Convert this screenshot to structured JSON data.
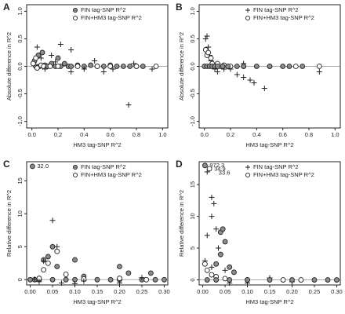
{
  "chart_data": [
    {
      "type": "scatter",
      "label": "A",
      "xlabel": "HM3 tag-SNP R^2",
      "ylabel": "Absolute difference in R^2",
      "legend": "upper right",
      "hline": 0,
      "xlim": [
        -0.04,
        1.04
      ],
      "ylim": [
        -1.12,
        1.12
      ],
      "xticks": [
        {
          "value": 0,
          "label": "0.0"
        },
        {
          "value": 0.2,
          "label": "0.2"
        },
        {
          "value": 0.4,
          "label": "0.4"
        },
        {
          "value": 0.6,
          "label": "0.6"
        },
        {
          "value": 0.8,
          "label": "0.8"
        },
        {
          "value": 1,
          "label": "1.0"
        }
      ],
      "yticks": [
        {
          "value": -1,
          "label": "-1.0"
        },
        {
          "value": -0.5,
          "label": "-0.5"
        },
        {
          "value": 0,
          "label": "0.0"
        },
        {
          "value": 0.5,
          "label": "0.5"
        },
        {
          "value": 1,
          "label": "1.0"
        }
      ],
      "series": [
        {
          "name": "FIN tag-SNP R^2",
          "marker": "filled",
          "color": "#8c8c8c",
          "x": [
            0.02,
            0.05,
            0.08,
            0.1,
            0.15,
            0.2,
            0.22,
            0.28,
            0.3,
            0.35,
            0.4,
            0.45,
            0.5,
            0.55,
            0.6,
            0.65,
            0.7,
            0.75,
            0.8,
            0.85,
            0.12,
            0.18,
            0.03,
            0.06,
            0.25
          ],
          "values": [
            0.1,
            0.2,
            0.25,
            0.02,
            0.05,
            0.15,
            0,
            0,
            0,
            0.02,
            0,
            0.02,
            0,
            0,
            0.02,
            0,
            0,
            0,
            0,
            0,
            0,
            0,
            0,
            0,
            0.05
          ]
        },
        {
          "name": "FIN+HM3 tag-SNP R^2",
          "marker": "open",
          "color": "#ffffff",
          "x": [
            0.01,
            0.03,
            0.04,
            0.07,
            0.09,
            0.14,
            0.2,
            0.35,
            0.5,
            0.6,
            0.8,
            0.95
          ],
          "values": [
            0.05,
            0.15,
            -0.03,
            0.02,
            0,
            0,
            0,
            0,
            0,
            0,
            0,
            0
          ]
        },
        {
          "marker": "plus",
          "color": "#222222",
          "x": [
            0.04,
            0.07,
            0.1,
            0.18,
            0.22,
            0.3,
            0.3,
            0.4,
            0.48,
            0.55,
            0.62,
            0.74,
            0.78,
            0.92,
            0.15
          ],
          "values": [
            0.35,
            0.15,
            -0.05,
            0.08,
            0.4,
            0.3,
            -0.1,
            -0.05,
            0.1,
            -0.1,
            -0.05,
            -0.7,
            0.05,
            -0.05,
            0.2
          ]
        }
      ]
    },
    {
      "type": "scatter",
      "label": "B",
      "xlabel": "HM3 tag-SNP R^2",
      "ylabel": "Absolute difference in R^2",
      "legend": "upper right",
      "hline": 0,
      "xlim": [
        -0.04,
        1.04
      ],
      "ylim": [
        -1.12,
        1.12
      ],
      "xticks": [
        {
          "value": 0,
          "label": "0.0"
        },
        {
          "value": 0.2,
          "label": "0.2"
        },
        {
          "value": 0.4,
          "label": "0.4"
        },
        {
          "value": 0.6,
          "label": "0.6"
        },
        {
          "value": 0.8,
          "label": "0.8"
        },
        {
          "value": 1,
          "label": "1.0"
        }
      ],
      "yticks": [
        {
          "value": -1,
          "label": "-1.0"
        },
        {
          "value": -0.5,
          "label": "-0.5"
        },
        {
          "value": 0,
          "label": "0.0"
        },
        {
          "value": 0.5,
          "label": "0.5"
        },
        {
          "value": 1,
          "label": "1.0"
        }
      ],
      "series": [
        {
          "name": "FIN tag-SNP R^2",
          "marker": "plus",
          "color": "#222222",
          "x": [
            0.01,
            0.02,
            0.03,
            0.04,
            0.05,
            0.08,
            0.1,
            0.15,
            0.25,
            0.3,
            0.35,
            0.38,
            0.46,
            0.3,
            0.88,
            0.2
          ],
          "values": [
            0.5,
            0.55,
            0.35,
            0.2,
            0.1,
            -0.05,
            -0.1,
            -0.05,
            -0.15,
            -0.2,
            -0.25,
            -0.3,
            -0.4,
            0.05,
            -0.1,
            -0.05
          ]
        },
        {
          "name": "FIN+HM3 tag-SNP R^2",
          "marker": "open",
          "color": "#ffffff",
          "x": [
            0.01,
            0.02,
            0.03,
            0.05,
            0.06,
            0.1,
            0.12,
            0.15,
            0.2,
            0.3,
            0.5,
            0.7,
            0.88
          ],
          "values": [
            0.3,
            0.2,
            0.25,
            0.15,
            0.05,
            0.05,
            0,
            0.02,
            0,
            0,
            0,
            0,
            0
          ]
        },
        {
          "marker": "filled",
          "color": "#8c8c8c",
          "x": [
            0,
            0.02,
            0.04,
            0.06,
            0.08,
            0.1,
            0.14,
            0.18,
            0.25,
            0.3,
            0.4,
            0.5,
            0.6,
            0.65,
            0.75
          ],
          "values": [
            0,
            0,
            0,
            0,
            0,
            0,
            0,
            0,
            0,
            0,
            0,
            0,
            0,
            0,
            0
          ]
        }
      ]
    },
    {
      "type": "scatter",
      "label": "C",
      "xlabel": "HM3 tag-SNP R^2",
      "ylabel": "Relative difference in R^2",
      "legend": "upper right",
      "hline": 0,
      "xlim": [
        -0.008,
        0.308
      ],
      "ylim": [
        -0.8,
        17.9
      ],
      "xticks": [
        {
          "value": 0,
          "label": "0.00"
        },
        {
          "value": 0.05,
          "label": "0.05"
        },
        {
          "value": 0.1,
          "label": "0.10"
        },
        {
          "value": 0.15,
          "label": "0.15"
        },
        {
          "value": 0.2,
          "label": "0.20"
        },
        {
          "value": 0.25,
          "label": "0.25"
        },
        {
          "value": 0.3,
          "label": "0.30"
        }
      ],
      "yticks": [
        0,
        5,
        10,
        15
      ],
      "annotations": [
        {
          "text": "32.0",
          "x": 0.005,
          "y": 17.2
        }
      ],
      "series": [
        {
          "name": "FIN tag-SNP R^2",
          "marker": "filled",
          "color": "#8c8c8c",
          "x": [
            0.005,
            0.03,
            0.04,
            0.05,
            0.06,
            0.1,
            0.12,
            0.2,
            0.22,
            0.27,
            0,
            0.01,
            0.02,
            0.05,
            0.08,
            0.1,
            0.15,
            0.18,
            0.2,
            0.25,
            0.28,
            0.3
          ],
          "values": [
            17.2,
            3,
            3.5,
            5,
            2,
            3,
            0.5,
            2,
            1,
            1,
            0,
            0,
            0,
            0,
            0,
            0,
            0,
            0,
            0,
            0,
            0,
            0
          ]
        },
        {
          "name": "FIN+HM3 tag-SNP R^2",
          "marker": "open",
          "color": "#ffffff",
          "x": [
            0.02,
            0.03,
            0.04,
            0.06,
            0.08,
            0.12,
            0.2,
            0.26
          ],
          "values": [
            0.2,
            1.5,
            2.5,
            4.3,
            0.8,
            0.1,
            0.2,
            0
          ]
        },
        {
          "marker": "plus",
          "color": "#222222",
          "x": [
            0.03,
            0.05,
            0.06,
            0.07,
            0.02,
            0.1,
            0.2,
            0.25,
            0.12,
            0.01
          ],
          "values": [
            2.8,
            9,
            5,
            -0.5,
            -0.3,
            -0.6,
            -0.5,
            0.3,
            -0.2,
            0.1
          ]
        }
      ]
    },
    {
      "type": "scatter",
      "label": "D",
      "xlabel": "HM3 tag-SNP R^2",
      "ylabel": "Relative difference in R^2",
      "legend": "upper right",
      "hline": 0,
      "xlim": [
        -0.008,
        0.308
      ],
      "ylim": [
        -0.8,
        18.6
      ],
      "xticks": [
        {
          "value": 0,
          "label": "0.00"
        },
        {
          "value": 0.05,
          "label": "0.05"
        },
        {
          "value": 0.1,
          "label": "0.10"
        },
        {
          "value": 0.15,
          "label": "0.15"
        },
        {
          "value": 0.2,
          "label": "0.20"
        },
        {
          "value": 0.25,
          "label": "0.25"
        },
        {
          "value": 0.3,
          "label": "0.30"
        }
      ],
      "yticks": [
        0,
        5,
        10,
        15
      ],
      "annotations": [
        {
          "text": "972.3",
          "x": 0.005,
          "y": 18
        },
        {
          "text": "34.9",
          "x": 0.015,
          "y": 17.4
        },
        {
          "text": "33.6",
          "x": 0.025,
          "y": 16.8
        }
      ],
      "series": [
        {
          "name": "FIN tag-SNP R^2",
          "marker": "plus",
          "color": "#222222",
          "x": [
            0.01,
            0.02,
            0.025,
            0.02,
            0.03,
            0.01,
            0.035,
            0.04,
            0.02,
            0.05,
            0.06,
            0.1,
            0.15,
            0.2,
            0.005
          ],
          "values": [
            17,
            13,
            12,
            10,
            8,
            7,
            5,
            4,
            2,
            1.5,
            -0.5,
            -0.5,
            0.3,
            -0.3,
            3
          ]
        },
        {
          "name": "FIN+HM3 tag-SNP R^2",
          "marker": "open",
          "color": "#ffffff",
          "x": [
            0.015,
            0.005,
            0.01,
            0.02,
            0.03,
            0.05,
            0.1,
            0.18,
            0.22
          ],
          "values": [
            17.5,
            2.5,
            1.5,
            0.8,
            0.5,
            0.2,
            0,
            0,
            0
          ]
        },
        {
          "marker": "filled",
          "color": "#8c8c8c",
          "x": [
            0.005,
            0.03,
            0.04,
            0.045,
            0.05,
            0.04,
            0.06,
            0.07,
            0.01,
            0.03,
            0.06,
            0.1,
            0.15,
            0.2,
            0.25,
            0.28,
            0.3
          ],
          "values": [
            18,
            2.5,
            7.5,
            8,
            6,
            4,
            2,
            1.2,
            0,
            0,
            0,
            0,
            0,
            0,
            0,
            0,
            0
          ]
        }
      ]
    }
  ]
}
